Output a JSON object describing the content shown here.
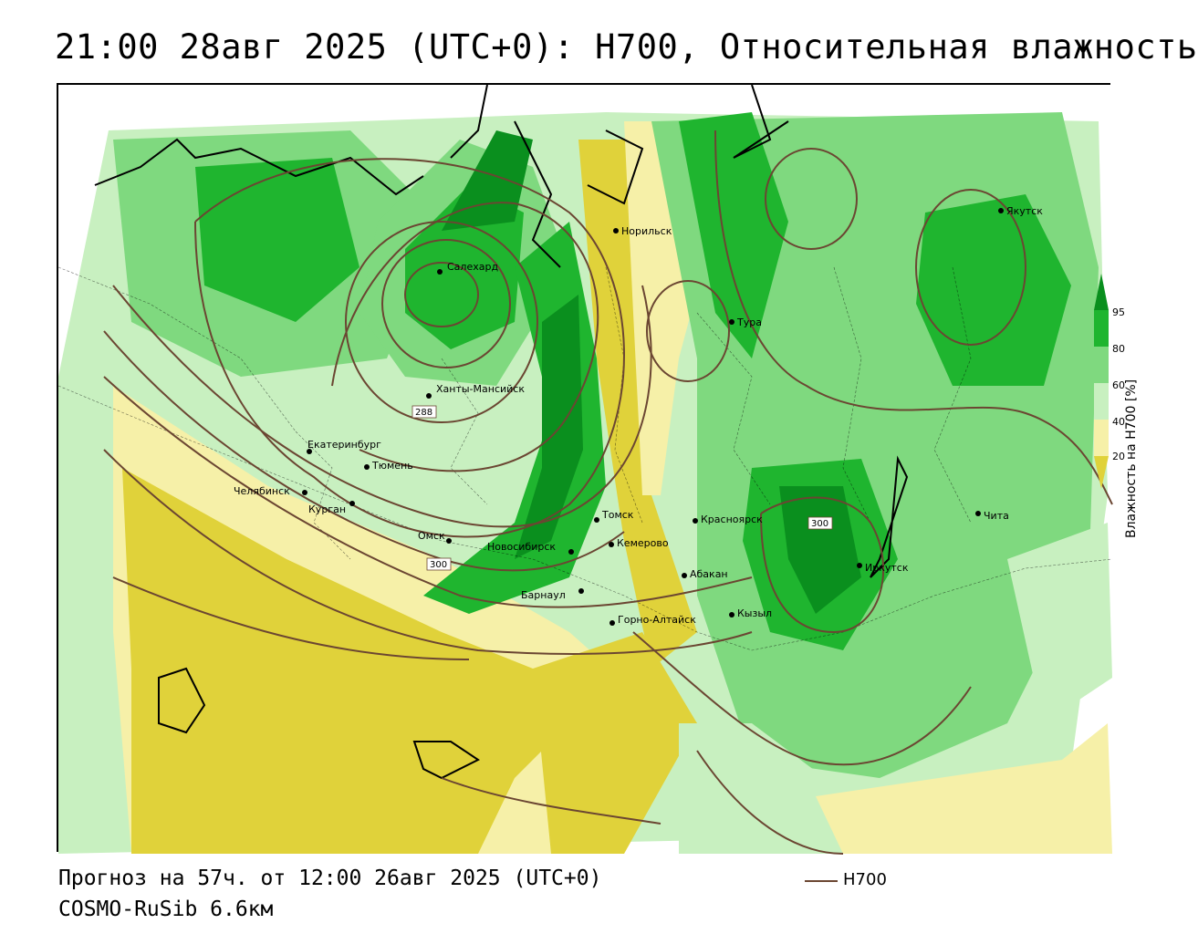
{
  "title": "21:00 28авг 2025 (UTC+0): H700, Относительная влажность",
  "footer": {
    "forecast": "Прогноз на 57ч. от 12:00 26авг 2025 (UTC+0)",
    "model": "COSMO-RuSib 6.6км"
  },
  "legend": {
    "contour_label": "H700",
    "contour_color": "#6b4632"
  },
  "colorbar": {
    "title": "Влажность на H700 [%]",
    "ticks": [
      "95",
      "80",
      "60",
      "40",
      "20"
    ],
    "colors": {
      "above_95": "#0a8f1e",
      "80_95": "#1fb52f",
      "60_80": "#7fd97f",
      "40_60": "#c8f0c0",
      "20_40": "#f6f0a8",
      "below_20": "#e0d23a"
    }
  },
  "cities": [
    {
      "name": "Салехард"
    },
    {
      "name": "Норильск"
    },
    {
      "name": "Тура"
    },
    {
      "name": "Якутск"
    },
    {
      "name": "Ханты-Мансийск"
    },
    {
      "name": "Екатеринбург"
    },
    {
      "name": "Тюмень"
    },
    {
      "name": "Челябинск"
    },
    {
      "name": "Курган"
    },
    {
      "name": "Омск"
    },
    {
      "name": "Новосибирск"
    },
    {
      "name": "Томск"
    },
    {
      "name": "Кемерово"
    },
    {
      "name": "Красноярск"
    },
    {
      "name": "Абакан"
    },
    {
      "name": "Барнаул"
    },
    {
      "name": "Горно-Алтайск"
    },
    {
      "name": "Кызыл"
    },
    {
      "name": "Иркутск"
    },
    {
      "name": "Чита"
    }
  ],
  "contour_labels": [
    "288",
    "300",
    "300"
  ]
}
